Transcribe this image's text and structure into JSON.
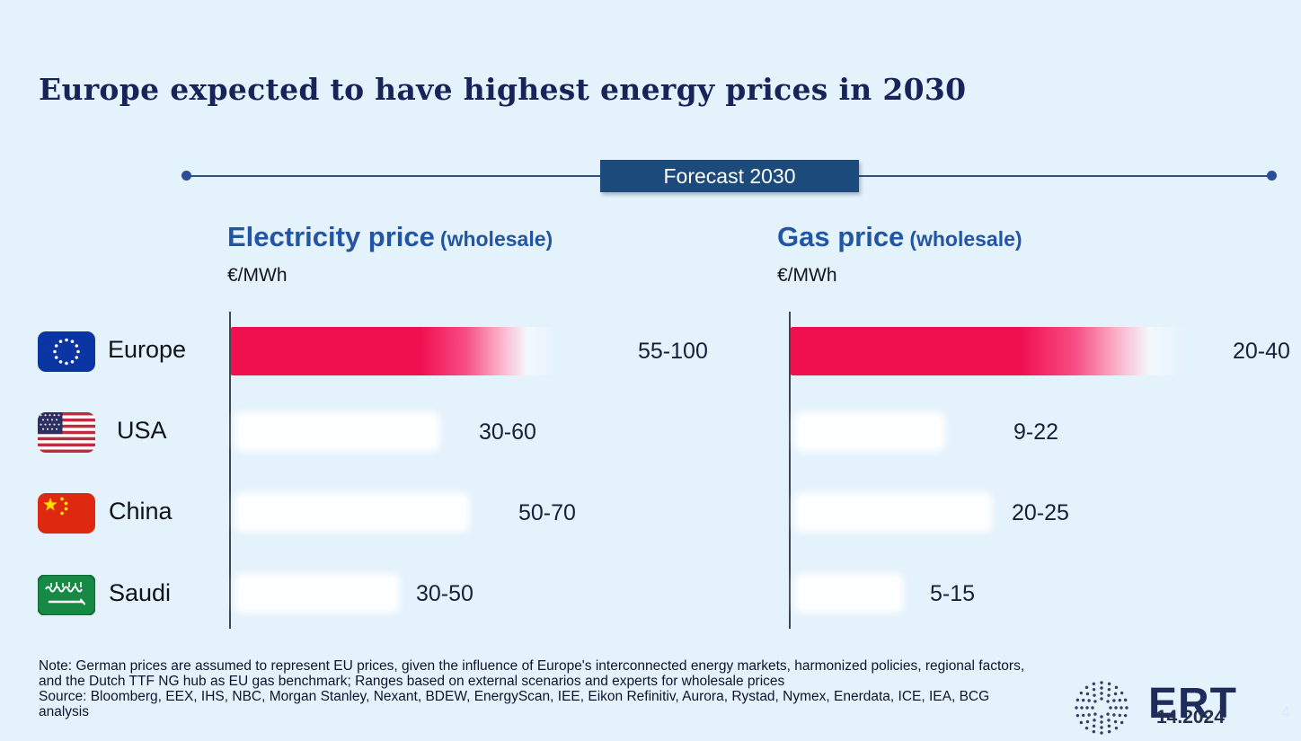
{
  "slide": {
    "title": "Europe expected to have highest energy prices in 2030",
    "banner_label": "Forecast 2030",
    "logo_text": "ERT",
    "date_watermark": "14.2024",
    "page_number": "4",
    "colors": {
      "background": "#E4F2FC",
      "title_navy": "#18235A",
      "banner_navy": "#1B4A7B",
      "header_blue": "#2256A5",
      "bar_highlight_pink": "#F00F4F",
      "bar_default_white": "#FFFFFF"
    }
  },
  "rows": [
    {
      "label": "Europe",
      "flag": "eu-flag"
    },
    {
      "label": "USA",
      "flag": "usa-flag"
    },
    {
      "label": "China",
      "flag": "china-flag"
    },
    {
      "label": "Saudi",
      "flag": "saudi-flag"
    }
  ],
  "footer": {
    "lines": [
      "Note: German prices are assumed to represent EU prices, given the influence of Europe's interconnected energy markets, harmonized policies, regional factors,",
      "and the Dutch TTF NG hub as EU gas benchmark; Ranges based on external scenarios and experts for wholesale prices",
      "Source: Bloomberg, EEX, IHS, NBC, Morgan Stanley, Nexant, BDEW, EnergyScan, IEE, Eikon Refinitiv,  Aurora, Rystad, Nymex, Enerdata, ICE, IEA, BCG",
      "analysis"
    ]
  },
  "chart_data": [
    {
      "type": "bar",
      "orientation": "horizontal",
      "title": "Electricity price",
      "subtitle": "(wholesale)",
      "unit": "€/MWh",
      "categories": [
        "Europe",
        "USA",
        "China",
        "Saudi"
      ],
      "series": [
        {
          "name": "Forecast 2030 range",
          "ranges": [
            [
              55,
              100
            ],
            [
              30,
              60
            ],
            [
              50,
              70
            ],
            [
              30,
              50
            ]
          ]
        }
      ],
      "labels": [
        "55-100",
        "30-60",
        "50-70",
        "30-50"
      ],
      "highlight_category": "Europe",
      "legend": "none",
      "gridlines": false,
      "value_axis_hidden": true
    },
    {
      "type": "bar",
      "orientation": "horizontal",
      "title": "Gas price",
      "subtitle": "(wholesale)",
      "unit": "€/MWh",
      "categories": [
        "Europe",
        "USA",
        "China",
        "Saudi"
      ],
      "series": [
        {
          "name": "Forecast 2030 range",
          "ranges": [
            [
              20,
              40
            ],
            [
              9,
              22
            ],
            [
              20,
              25
            ],
            [
              5,
              15
            ]
          ]
        }
      ],
      "labels": [
        "20-40",
        "9-22",
        "20-25",
        "5-15"
      ],
      "highlight_category": "Europe",
      "legend": "none",
      "gridlines": false,
      "value_axis_hidden": true
    }
  ]
}
